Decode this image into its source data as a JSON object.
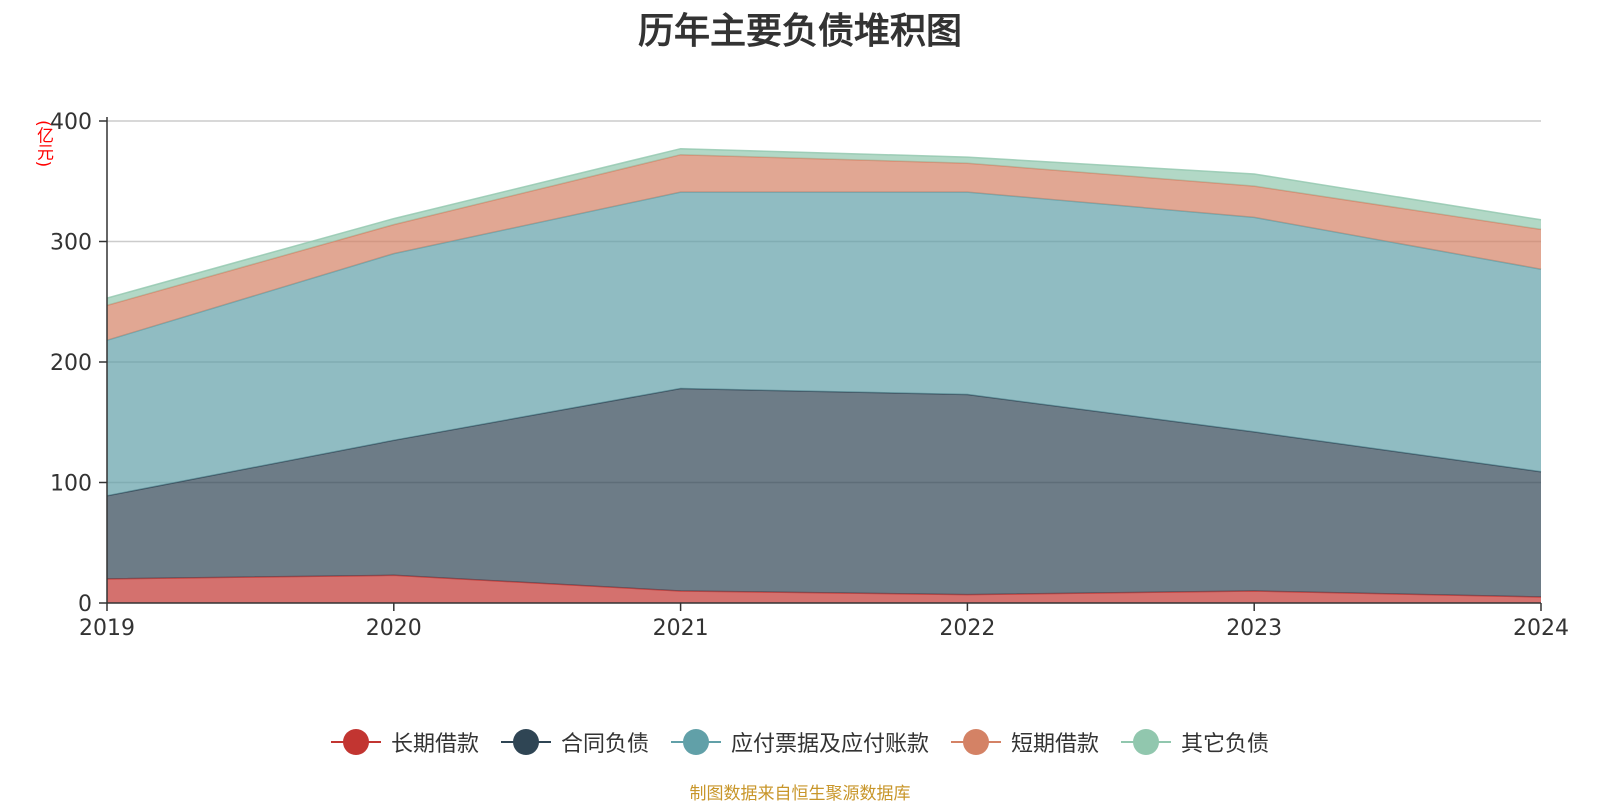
{
  "chart_data": {
    "type": "area",
    "stacked": true,
    "title": "历年主要负债堆积图",
    "unit_label": "(亿元)",
    "x": [
      "2019",
      "2020",
      "2021",
      "2022",
      "2023",
      "2024"
    ],
    "ylim": [
      0,
      400
    ],
    "yticks": [
      0,
      100,
      200,
      300,
      400
    ],
    "grid": true,
    "legend_position": "bottom",
    "series": [
      {
        "name": "长期借款",
        "color": "#c23531",
        "values": [
          20,
          23,
          10,
          7,
          10,
          5
        ]
      },
      {
        "name": "合同负债",
        "color": "#2f4554",
        "values": [
          69,
          112,
          168,
          166,
          132,
          104
        ]
      },
      {
        "name": "应付票据及应付账款",
        "color": "#61a0a8",
        "values": [
          129,
          155,
          163,
          168,
          178,
          168
        ]
      },
      {
        "name": "短期借款",
        "color": "#d48265",
        "values": [
          29,
          24,
          31,
          24,
          26,
          33
        ]
      },
      {
        "name": "其它负债",
        "color": "#91c7ae",
        "values": [
          6,
          5,
          5,
          5,
          10,
          8
        ]
      }
    ]
  },
  "source_note": "制图数据来自恒生聚源数据库"
}
